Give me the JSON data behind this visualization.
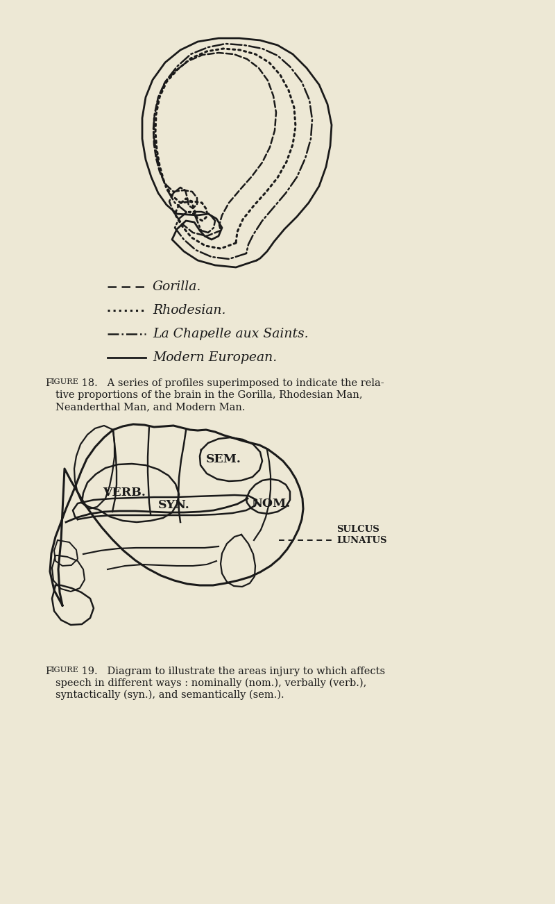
{
  "background_color": "#ede8d5",
  "text_color": "#1a1a1a",
  "fig_width": 8.0,
  "fig_height": 13.02,
  "sulcus_label": "SULCUS\nLUNATUS",
  "brain_labels": [
    "VERB.",
    "SEM.",
    "NOM.",
    "SYN."
  ],
  "fig18_caption_line1": "IGURE 18.   A series of profiles superimposed to indicate the rela-",
  "fig18_caption_line2": "     tive proportions of the brain in the Gorilla, Rhodesian Man,",
  "fig18_caption_line3": "     Neanderthal Man, and Modern Man.",
  "fig19_caption_line1": "IGURE 19.   Diagram to illustrate the areas injury to which affects",
  "fig19_caption_line2": "     speech in different ways : nominally (nom.), verbally (verb.),",
  "fig19_caption_line3": "     syntactically (syn.), and semantically (sem.).",
  "legend_gorilla_label": "Gorilla.",
  "legend_rhodesian_label": "Rhodesian.",
  "legend_chapelle_label": "La Chapelle aux Saints.",
  "legend_modern_label": "Modern European."
}
